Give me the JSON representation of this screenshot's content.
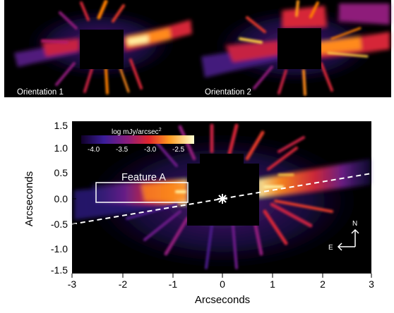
{
  "panels": {
    "top_left": {
      "label": "Orientation 1"
    },
    "top_right": {
      "label": "Orientation 2"
    },
    "main": {
      "colorbar": {
        "title": "log mJy/arcsec",
        "title_superscript": "2",
        "ticks": [
          "-4.0",
          "-3.5",
          "-3.0",
          "-2.5"
        ]
      },
      "feature_label": "Feature A",
      "compass": {
        "north": "N",
        "east": "E"
      },
      "x_axis": {
        "label": "Arcseconds",
        "ticks": [
          "-3",
          "-2",
          "-1",
          "0",
          "1",
          "2",
          "3"
        ]
      },
      "y_axis": {
        "label": "Arcseconds",
        "ticks": [
          "1.5",
          "1.0",
          "0.5",
          "0.0",
          "-0.5",
          "-1.0",
          "-1.5"
        ]
      }
    }
  },
  "colors": {
    "background": "#ffffff",
    "image_bg": "#000000",
    "low": "#2b1b7a",
    "mid": "#c2185b",
    "high": "#ff7f00",
    "peak": "#fff59d"
  }
}
